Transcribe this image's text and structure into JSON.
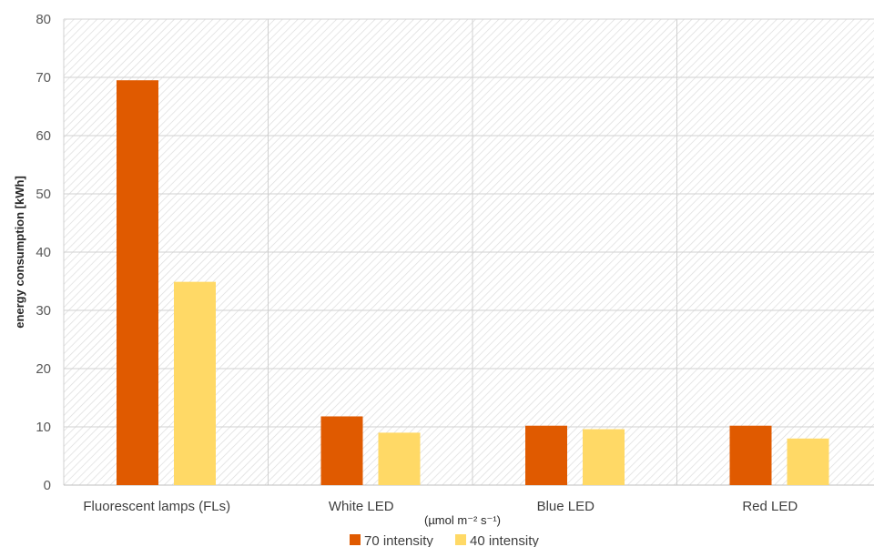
{
  "chart_data": {
    "type": "bar",
    "title": "",
    "xlabel": "(µmol m⁻² s⁻¹)",
    "ylabel": "energy consumption [kWh]",
    "ylim": [
      0,
      80
    ],
    "yticks": [
      0,
      10,
      20,
      30,
      40,
      50,
      60,
      70,
      80
    ],
    "categories": [
      "Fluorescent lamps (FLs)",
      "White LED",
      "Blue LED",
      "Red LED"
    ],
    "series": [
      {
        "name": "70 intensity",
        "color": "#E05A00",
        "values": [
          69.5,
          11.8,
          10.2,
          10.2
        ]
      },
      {
        "name": "40 intensity",
        "color": "#FFD966",
        "values": [
          34.9,
          9.0,
          9.6,
          8.0
        ]
      }
    ],
    "grid": true,
    "legend": "bottom"
  }
}
